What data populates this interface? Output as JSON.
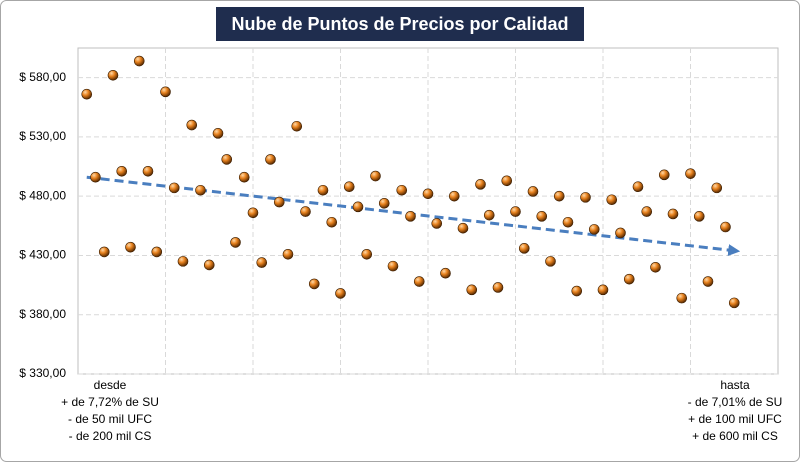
{
  "chart_data": {
    "type": "scatter",
    "title": "Nube de Puntos de Precios por Calidad",
    "x": [
      1,
      2,
      3,
      4,
      5,
      6,
      7,
      8,
      9,
      10,
      11,
      12,
      13,
      14,
      15,
      16,
      17,
      18,
      19,
      20,
      21,
      22,
      23,
      24,
      25,
      26,
      27,
      28,
      29,
      30,
      31,
      32,
      33,
      34,
      35,
      36,
      37,
      38,
      39,
      40,
      41,
      42,
      43,
      44,
      45,
      46,
      47,
      48,
      49,
      50,
      51,
      52,
      53,
      54,
      55,
      56,
      57,
      58,
      59,
      60,
      61,
      62,
      63,
      64,
      65,
      66,
      67,
      68,
      69,
      70,
      71,
      72,
      73,
      74,
      75
    ],
    "values": [
      566,
      496,
      433,
      582,
      501,
      437,
      594,
      501,
      433,
      568,
      487,
      425,
      540,
      485,
      422,
      533,
      511,
      441,
      496,
      466,
      424,
      511,
      475,
      431,
      539,
      467,
      406,
      485,
      458,
      398,
      488,
      471,
      431,
      497,
      474,
      421,
      485,
      463,
      408,
      482,
      457,
      415,
      480,
      453,
      401,
      490,
      464,
      403,
      493,
      467,
      436,
      484,
      463,
      425,
      480,
      458,
      400,
      479,
      452,
      401,
      477,
      449,
      410,
      488,
      467,
      420,
      498,
      465,
      394,
      499,
      463,
      408,
      487,
      454,
      390
    ],
    "color": "#e8821e",
    "trendline": {
      "x": [
        1,
        75
      ],
      "y": [
        496,
        434
      ],
      "color": "#4a7ebf"
    },
    "xlim": [
      0,
      80
    ],
    "xticks": [
      10,
      20,
      30,
      40,
      50,
      60,
      70
    ],
    "ylim": [
      330,
      605
    ],
    "yticks": [
      {
        "value": 330,
        "label": "$ 330,00"
      },
      {
        "value": 380,
        "label": "$ 380,00"
      },
      {
        "value": 430,
        "label": "$ 430,00"
      },
      {
        "value": 480,
        "label": "$ 480,00"
      },
      {
        "value": 530,
        "label": "$ 530,00"
      },
      {
        "value": 580,
        "label": "$ 580,00"
      }
    ],
    "grid": true,
    "annotations": {
      "left": [
        "desde",
        "+ de 7,72% de SU",
        "- de 50 mil UFC",
        "- de 200 mil CS"
      ],
      "right": [
        "hasta",
        "- de 7,01% de SU",
        "+ de 100 mil UFC",
        "+ de 600 mil CS"
      ]
    }
  }
}
